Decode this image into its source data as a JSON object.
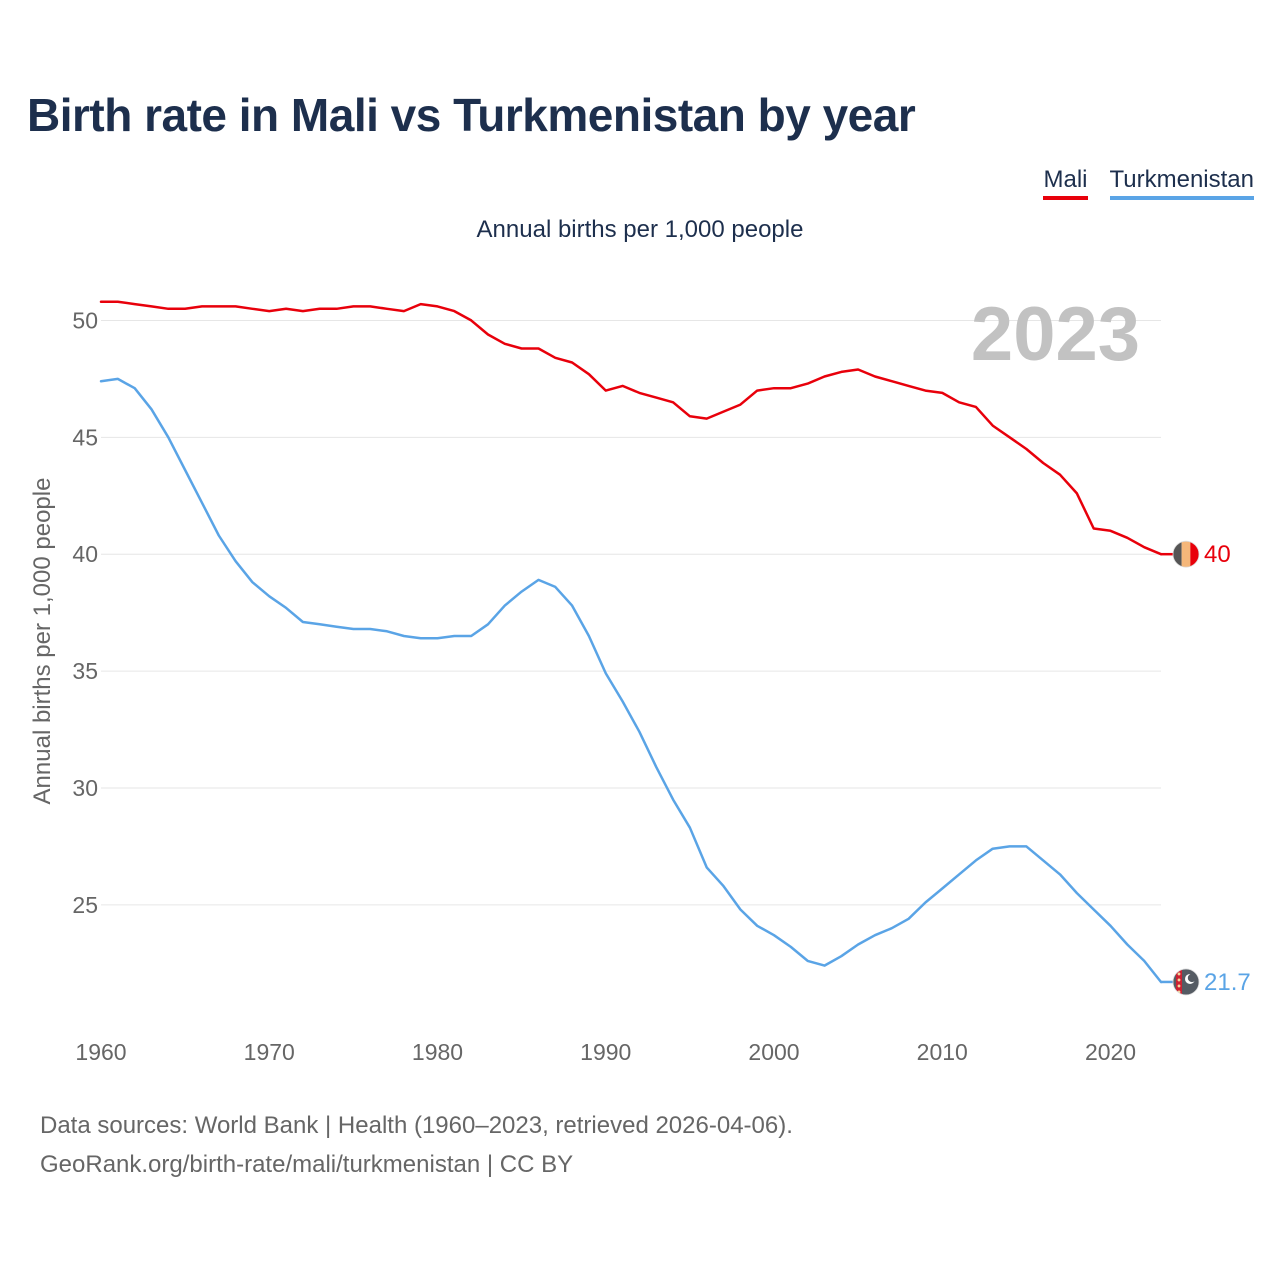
{
  "title": "Birth rate in Mali vs Turkmenistan by year",
  "subtitle": "Annual births per 1,000 people",
  "year_label": "2023",
  "legend": [
    {
      "name": "Mali",
      "color": "#e8000b"
    },
    {
      "name": "Turkmenistan",
      "color": "#5aa4e6"
    }
  ],
  "footer": {
    "line1": "Data sources: World Bank | Health (1960–2023, retrieved 2026-04-06).",
    "line2": "GeoRank.org/birth-rate/mali/turkmenistan | CC BY"
  },
  "chart_data": {
    "type": "line",
    "title": "Birth rate in Mali vs Turkmenistan by year",
    "xlabel": "",
    "ylabel": "Annual births per 1,000 people",
    "xlim": [
      1960,
      2023
    ],
    "ylim": [
      20.5,
      52.5
    ],
    "xticks": [
      "1960",
      "1970",
      "1980",
      "1990",
      "2000",
      "2010",
      "2020"
    ],
    "yticks": [
      "25",
      "30",
      "35",
      "40",
      "45",
      "50"
    ],
    "grid": true,
    "x": [
      1960,
      1961,
      1962,
      1963,
      1964,
      1965,
      1966,
      1967,
      1968,
      1969,
      1970,
      1971,
      1972,
      1973,
      1974,
      1975,
      1976,
      1977,
      1978,
      1979,
      1980,
      1981,
      1982,
      1983,
      1984,
      1985,
      1986,
      1987,
      1988,
      1989,
      1990,
      1991,
      1992,
      1993,
      1994,
      1995,
      1996,
      1997,
      1998,
      1999,
      2000,
      2001,
      2002,
      2003,
      2004,
      2005,
      2006,
      2007,
      2008,
      2009,
      2010,
      2011,
      2012,
      2013,
      2014,
      2015,
      2016,
      2017,
      2018,
      2019,
      2020,
      2021,
      2022,
      2023
    ],
    "series": [
      {
        "name": "Mali",
        "color": "#e8000b",
        "end_label": "40",
        "values": [
          50.8,
          50.8,
          50.7,
          50.6,
          50.5,
          50.5,
          50.6,
          50.6,
          50.6,
          50.5,
          50.4,
          50.5,
          50.4,
          50.5,
          50.5,
          50.6,
          50.6,
          50.5,
          50.4,
          50.7,
          50.6,
          50.4,
          50.0,
          49.4,
          49.0,
          48.8,
          48.8,
          48.4,
          48.2,
          47.7,
          47.0,
          47.2,
          46.9,
          46.7,
          46.5,
          45.9,
          45.8,
          46.1,
          46.4,
          47.0,
          47.1,
          47.1,
          47.3,
          47.6,
          47.8,
          47.9,
          47.6,
          47.4,
          47.2,
          47.0,
          46.9,
          46.5,
          46.3,
          45.5,
          45.0,
          44.5,
          43.9,
          43.4,
          42.6,
          41.1,
          41.0,
          40.7,
          40.3,
          40.0
        ]
      },
      {
        "name": "Turkmenistan",
        "color": "#5aa4e6",
        "end_label": "21.7",
        "values": [
          47.4,
          47.5,
          47.1,
          46.2,
          45.0,
          43.6,
          42.2,
          40.8,
          39.7,
          38.8,
          38.2,
          37.7,
          37.1,
          37.0,
          36.9,
          36.8,
          36.8,
          36.7,
          36.5,
          36.4,
          36.4,
          36.5,
          36.5,
          37.0,
          37.8,
          38.4,
          38.9,
          38.6,
          37.8,
          36.5,
          34.9,
          33.7,
          32.4,
          30.9,
          29.5,
          28.3,
          26.6,
          25.8,
          24.8,
          24.1,
          23.7,
          23.2,
          22.6,
          22.4,
          22.8,
          23.3,
          23.7,
          24.0,
          24.4,
          25.1,
          25.7,
          26.3,
          26.9,
          27.4,
          27.5,
          27.5,
          26.9,
          26.3,
          25.5,
          24.8,
          24.1,
          23.3,
          22.6,
          21.7
        ]
      }
    ]
  }
}
